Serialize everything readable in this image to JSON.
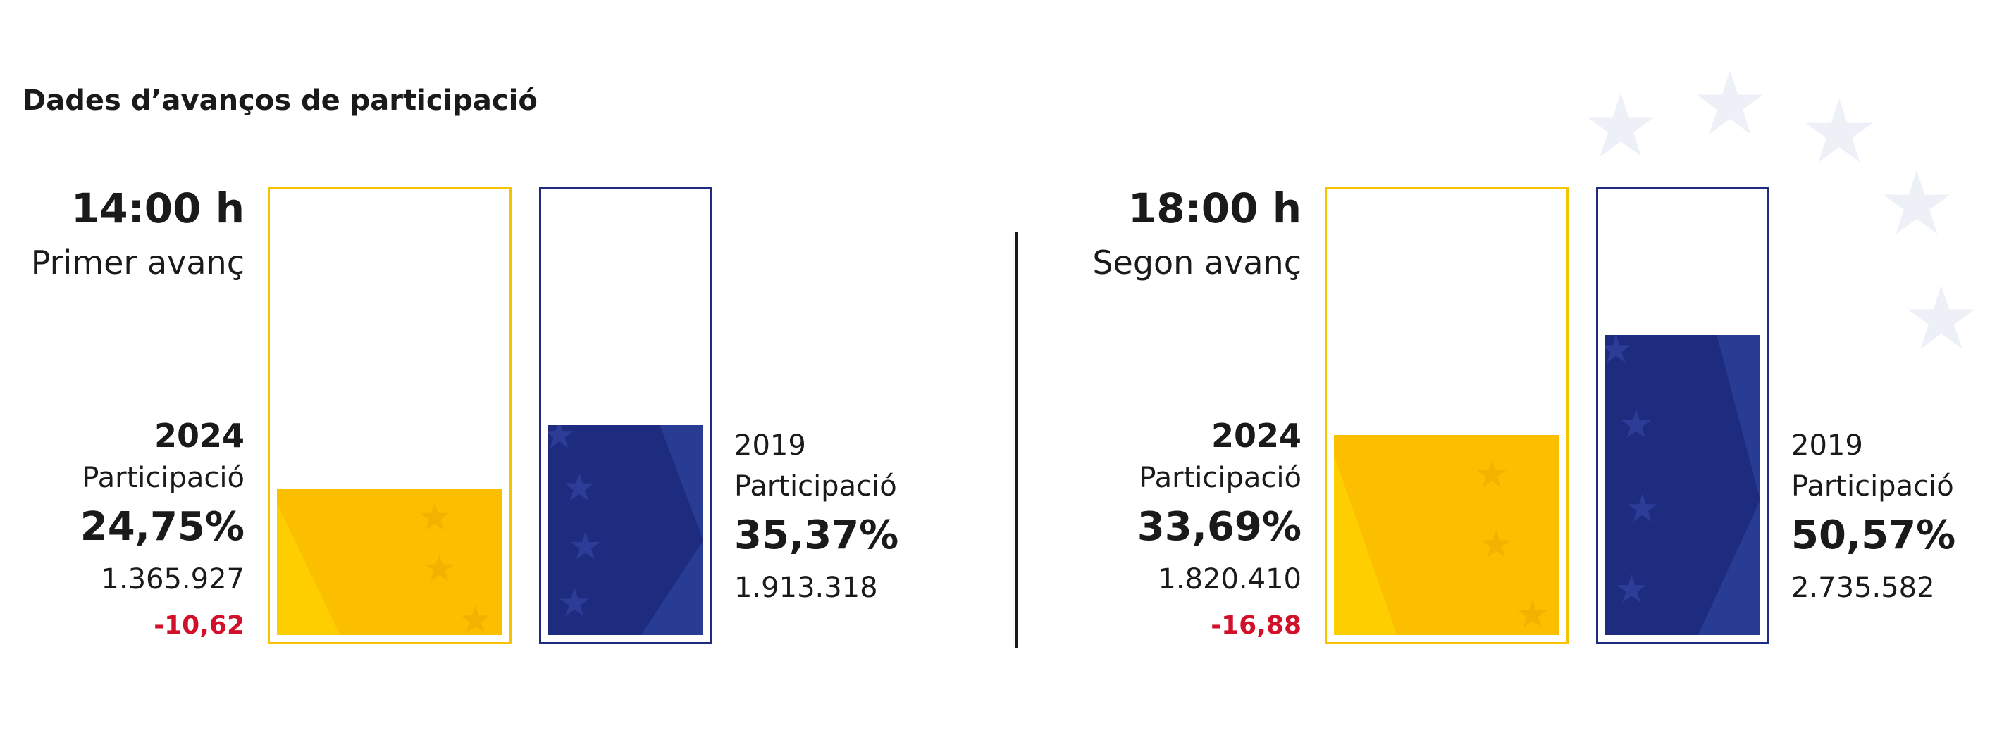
{
  "title": "Dades d’avanços de participació",
  "colors": {
    "yellow": "#fcbf00",
    "yellow_light": "#ffd000",
    "blue": "#1e2c7f",
    "blue_light": "#2b3f96",
    "negative": "#d2102a"
  },
  "panels": [
    {
      "time": "14:00 h",
      "label": "Primer avanç",
      "year_2024": "2024",
      "participation_label_2024": "Participació",
      "pct_2024": "24,75%",
      "votes_2024": "1.365.927",
      "diff": "-10,62",
      "year_2019": "2019",
      "participation_label_2019": "Participació",
      "pct_2019": "35,37%",
      "votes_2019": "1.913.318"
    },
    {
      "time": "18:00 h",
      "label": "Segon avanç",
      "year_2024": "2024",
      "participation_label_2024": "Participació",
      "pct_2024": "33,69%",
      "votes_2024": "1.820.410",
      "diff": "-16,88",
      "year_2019": "2019",
      "participation_label_2019": "Participació",
      "pct_2019": "50,57%",
      "votes_2019": "2.735.582"
    }
  ],
  "chart_data": [
    {
      "type": "bar",
      "title": "14:00 h",
      "categories": [
        "2024",
        "2019"
      ],
      "values": [
        24.75,
        35.37
      ],
      "ylim": [
        0,
        100
      ]
    },
    {
      "type": "bar",
      "title": "18:00 h",
      "categories": [
        "2024",
        "2019"
      ],
      "values": [
        33.69,
        50.57
      ],
      "ylim": [
        0,
        100
      ]
    }
  ]
}
